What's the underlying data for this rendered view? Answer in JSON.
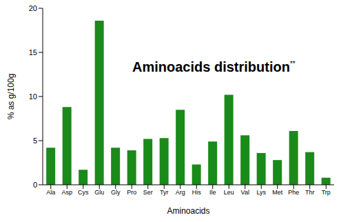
{
  "chart_data": {
    "type": "bar",
    "title": "Aminoacids distribution",
    "annotations": [
      "**"
    ],
    "x_label": "Aminoacids",
    "y_label": "% as g/100g",
    "categories": [
      "Ala",
      "Asp",
      "Cys",
      "Glu",
      "Gly",
      "Pro",
      "Ser",
      "Tyr",
      "Arg",
      "His",
      "Ile",
      "Leu",
      "Val",
      "Lys",
      "Met",
      "Phe",
      "Thr",
      "Trp"
    ],
    "values": [
      4.2,
      8.8,
      1.7,
      18.6,
      4.2,
      3.9,
      5.2,
      5.3,
      8.5,
      2.3,
      4.9,
      10.2,
      5.6,
      3.6,
      2.8,
      6.1,
      3.7,
      0.8
    ],
    "color": "#1a8a1a",
    "ylim": [
      0,
      20
    ],
    "yticks": [
      0,
      5,
      10,
      15,
      20
    ],
    "grid": false
  }
}
